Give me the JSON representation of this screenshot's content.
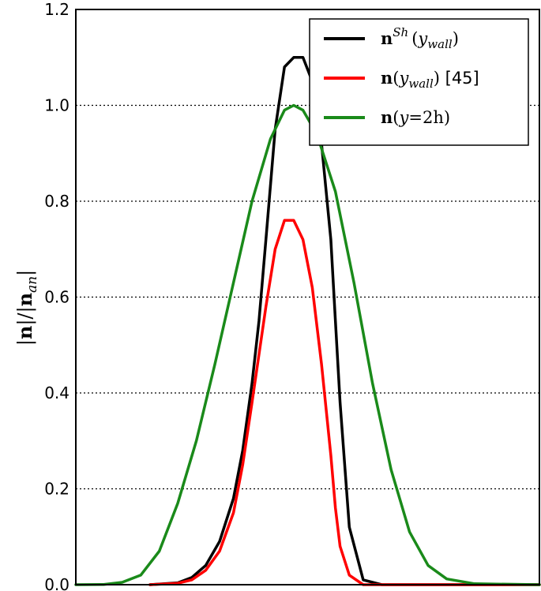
{
  "chart_data": {
    "type": "line",
    "title": "",
    "xlabel": "",
    "ylabel": "|n|/|n_an|",
    "ylabel_display": {
      "pre": "|",
      "n1": "n",
      "mid": "|/|",
      "n2": "n",
      "sub": "an",
      "post": "|"
    },
    "xlim": [
      0,
      1
    ],
    "ylim": [
      0,
      1.2
    ],
    "yticks": [
      "0.0",
      "0.2",
      "0.4",
      "0.6",
      "0.8",
      "1.0",
      "1.2"
    ],
    "grid": "y-dotted",
    "legend_position": "top-right",
    "series": [
      {
        "name": "n^{Sh}(y_wall)",
        "legend": {
          "main": "n",
          "sup": "Sh",
          "open": "(",
          "var": "y",
          "sub": "wall",
          "close": ")",
          "suffix": ""
        },
        "color": "#000000",
        "x": [
          0.16,
          0.22,
          0.25,
          0.28,
          0.31,
          0.34,
          0.36,
          0.38,
          0.395,
          0.41,
          0.43,
          0.45,
          0.47,
          0.49,
          0.51,
          0.53,
          0.55,
          0.56,
          0.57,
          0.59,
          0.62,
          0.66,
          1.0
        ],
        "y": [
          0.0,
          0.004,
          0.015,
          0.04,
          0.09,
          0.18,
          0.28,
          0.42,
          0.55,
          0.72,
          0.95,
          1.08,
          1.1,
          1.1,
          1.05,
          0.92,
          0.72,
          0.55,
          0.38,
          0.12,
          0.01,
          0.0,
          0.0
        ]
      },
      {
        "name": "n(y_wall) [45]",
        "legend": {
          "main": "n",
          "sup": "",
          "open": "(",
          "var": "y",
          "sub": "wall",
          "close": ")",
          "suffix": " [45]"
        },
        "color": "#ff0000",
        "x": [
          0.16,
          0.22,
          0.25,
          0.28,
          0.31,
          0.34,
          0.36,
          0.38,
          0.41,
          0.43,
          0.45,
          0.47,
          0.49,
          0.51,
          0.53,
          0.55,
          0.56,
          0.57,
          0.59,
          0.62,
          1.0
        ],
        "y": [
          0.0,
          0.003,
          0.01,
          0.03,
          0.07,
          0.15,
          0.25,
          0.38,
          0.58,
          0.7,
          0.76,
          0.76,
          0.72,
          0.62,
          0.46,
          0.27,
          0.16,
          0.08,
          0.02,
          0.0,
          0.0
        ]
      },
      {
        "name": "n(y=2h)",
        "legend": {
          "main": "n",
          "sup": "",
          "open": "(",
          "var": "y",
          "sub": "",
          "close": "=2h)",
          "suffix": ""
        },
        "color": "#1a8a1a",
        "x": [
          0.0,
          0.06,
          0.1,
          0.14,
          0.18,
          0.22,
          0.26,
          0.3,
          0.34,
          0.38,
          0.42,
          0.45,
          0.47,
          0.49,
          0.52,
          0.56,
          0.6,
          0.64,
          0.68,
          0.72,
          0.76,
          0.8,
          0.86,
          1.0
        ],
        "y": [
          0.0,
          0.0005,
          0.005,
          0.02,
          0.07,
          0.17,
          0.3,
          0.46,
          0.63,
          0.8,
          0.93,
          0.99,
          1.0,
          0.99,
          0.94,
          0.82,
          0.63,
          0.42,
          0.24,
          0.11,
          0.04,
          0.012,
          0.002,
          0.0
        ]
      }
    ]
  }
}
